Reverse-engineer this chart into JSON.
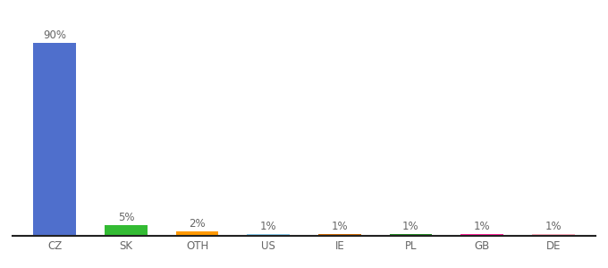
{
  "categories": [
    "CZ",
    "SK",
    "OTH",
    "US",
    "IE",
    "PL",
    "GB",
    "DE"
  ],
  "values": [
    90,
    5,
    2,
    1,
    1,
    1,
    1,
    1
  ],
  "bar_colors": [
    "#4f6fcc",
    "#33bb33",
    "#ff9900",
    "#88ccee",
    "#cc6600",
    "#228822",
    "#ff2299",
    "#ffaabb"
  ],
  "ylim": [
    0,
    100
  ],
  "background_color": "#ffffff",
  "label_fontsize": 8.5,
  "tick_fontsize": 8.5
}
